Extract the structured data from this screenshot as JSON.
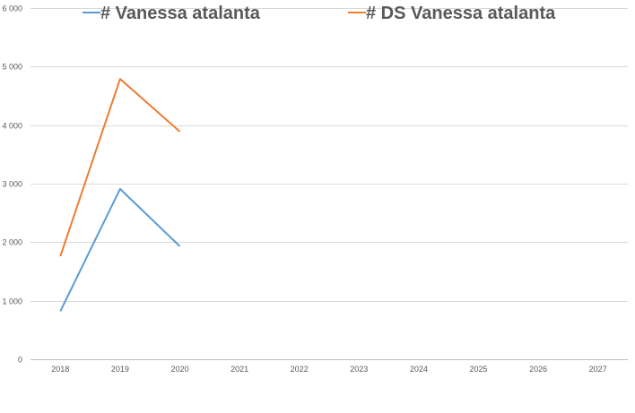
{
  "chart_data": {
    "type": "line",
    "title": "",
    "xlabel": "",
    "ylabel": "",
    "categories": [
      "2018",
      "2019",
      "2020",
      "2021",
      "2022",
      "2023",
      "2024",
      "2025",
      "2026",
      "2027"
    ],
    "ylim": [
      0,
      6000
    ],
    "yticks": [
      0,
      1000,
      2000,
      3000,
      4000,
      5000,
      6000
    ],
    "ytick_labels": [
      "0",
      "1 000",
      "2 000",
      "3 000",
      "4 000",
      "5 000",
      "6 000"
    ],
    "grid": true,
    "legend_position": "top",
    "series": [
      {
        "name": "# Vanessa atalanta",
        "color": "#5B9BD5",
        "values": [
          820,
          2910,
          1930,
          null,
          null,
          null,
          null,
          null,
          null,
          null
        ]
      },
      {
        "name": "# DS Vanessa atalanta",
        "color": "#ED7D31",
        "values": [
          1760,
          4790,
          3890,
          null,
          null,
          null,
          null,
          null,
          null,
          null
        ]
      }
    ]
  }
}
